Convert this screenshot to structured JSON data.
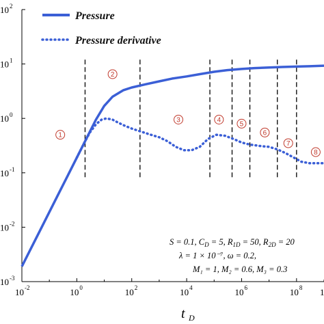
{
  "chart_data": {
    "type": "line",
    "xlabel": "t",
    "xlabel_sub": "D",
    "ylabel": "",
    "x_scale": "log",
    "y_scale": "log",
    "xlim": [
      0.01,
      1000000000
    ],
    "ylim": [
      0.001,
      100
    ],
    "x_ticks": [
      {
        "base": "10",
        "exp": "-2",
        "value": 0.01
      },
      {
        "base": "10",
        "exp": "0",
        "value": 1
      },
      {
        "base": "10",
        "exp": "2",
        "value": 100
      },
      {
        "base": "10",
        "exp": "4",
        "value": 10000
      },
      {
        "base": "10",
        "exp": "6",
        "value": 1000000
      },
      {
        "base": "10",
        "exp": "8",
        "value": 100000000
      }
    ],
    "x_edge_label": "1",
    "y_ticks": [
      {
        "base": "10",
        "exp": "2",
        "value": 100
      },
      {
        "base": "10",
        "exp": "1",
        "value": 10
      },
      {
        "base": "10",
        "exp": "0",
        "value": 1
      },
      {
        "base": "10",
        "exp": "-1",
        "value": 0.1
      },
      {
        "base": "10",
        "exp": "-2",
        "value": 0.01
      },
      {
        "base": "10",
        "exp": "-3",
        "value": 0.001
      }
    ],
    "grid": false,
    "legend_position": "top-left",
    "series": [
      {
        "name": "Pressure",
        "style": "solid",
        "color": "#3b5fd6",
        "points": [
          [
            0.01,
            0.0019
          ],
          [
            0.02,
            0.0038
          ],
          [
            0.05,
            0.0095
          ],
          [
            0.1,
            0.019
          ],
          [
            0.2,
            0.038
          ],
          [
            0.5,
            0.095
          ],
          [
            1,
            0.19
          ],
          [
            2,
            0.38
          ],
          [
            3,
            0.57
          ],
          [
            5,
            0.95
          ],
          [
            10,
            1.7
          ],
          [
            20,
            2.5
          ],
          [
            50,
            3.3
          ],
          [
            100,
            3.7
          ],
          [
            300,
            4.2
          ],
          [
            1000,
            4.8
          ],
          [
            3000,
            5.4
          ],
          [
            10000,
            5.9
          ],
          [
            30000,
            6.5
          ],
          [
            100000,
            7.2
          ],
          [
            300000,
            7.7
          ],
          [
            1000000,
            8.1
          ],
          [
            3000000,
            8.4
          ],
          [
            10000000,
            8.6
          ],
          [
            30000000,
            8.8
          ],
          [
            100000000,
            8.95
          ],
          [
            300000000,
            9.1
          ],
          [
            1000000000,
            9.3
          ]
        ]
      },
      {
        "name": "Pressure derivative",
        "style": "dotted",
        "color": "#3b5fd6",
        "points": [
          [
            1,
            0.19
          ],
          [
            2,
            0.38
          ],
          [
            3,
            0.55
          ],
          [
            5,
            0.78
          ],
          [
            8,
            0.95
          ],
          [
            12,
            1.0
          ],
          [
            20,
            0.95
          ],
          [
            30,
            0.85
          ],
          [
            50,
            0.75
          ],
          [
            100,
            0.65
          ],
          [
            200,
            0.58
          ],
          [
            500,
            0.5
          ],
          [
            1000,
            0.45
          ],
          [
            2000,
            0.38
          ],
          [
            4000,
            0.3
          ],
          [
            8000,
            0.26
          ],
          [
            15000,
            0.26
          ],
          [
            30000,
            0.3
          ],
          [
            60000,
            0.42
          ],
          [
            120000,
            0.5
          ],
          [
            250000,
            0.48
          ],
          [
            500000,
            0.42
          ],
          [
            1000000,
            0.36
          ],
          [
            2000000,
            0.33
          ],
          [
            5000000,
            0.31
          ],
          [
            10000000,
            0.3
          ],
          [
            20000000,
            0.27
          ],
          [
            40000000,
            0.23
          ],
          [
            80000000,
            0.19
          ],
          [
            150000000,
            0.16
          ],
          [
            300000000,
            0.15
          ],
          [
            600000000,
            0.15
          ],
          [
            1000000000,
            0.15
          ]
        ]
      }
    ],
    "region_boundaries_x": [
      2,
      200,
      70000,
      450000,
      2000000,
      20000000,
      100000000
    ],
    "region_boundary_yrange": [
      0.08,
      12
    ],
    "regions": [
      {
        "label": "1",
        "x": 0.25,
        "y": 0.5
      },
      {
        "label": "2",
        "x": 20,
        "y": 6.5
      },
      {
        "label": "3",
        "x": 5000,
        "y": 0.95
      },
      {
        "label": "4",
        "x": 150000,
        "y": 0.95
      },
      {
        "label": "5",
        "x": 1000000,
        "y": 0.8
      },
      {
        "label": "6",
        "x": 7000000,
        "y": 0.55
      },
      {
        "label": "7",
        "x": 50000000,
        "y": 0.35
      },
      {
        "label": "8",
        "x": 500000000,
        "y": 0.24
      }
    ],
    "annotation_lines": [
      "S = 0.1, C_D = 5, R_1D = 50, R_2D = 20",
      "λ = 1 × 10⁻⁷,   ω = 0.2,",
      "M₁ = 1, M₂ = 0.6, M₃ = 0.3"
    ]
  }
}
